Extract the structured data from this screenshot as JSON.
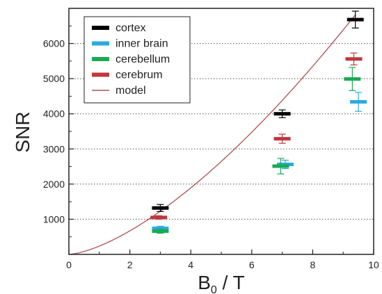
{
  "chart_data": {
    "type": "scatter",
    "xlabel_main": "B",
    "xlabel_sub": "0",
    "xlabel_rest": " / T",
    "ylabel": "SNR",
    "xlim": [
      0,
      10
    ],
    "ylim": [
      0,
      7000
    ],
    "x_ticks": [
      0,
      2,
      4,
      6,
      8,
      10
    ],
    "x_minor_ticks": [
      1,
      3,
      5,
      7,
      9
    ],
    "y_ticks": [
      1000,
      2000,
      3000,
      4000,
      5000,
      6000
    ],
    "grid": "horizontal-dotted",
    "legend_position": "top-left",
    "series": [
      {
        "name": "cortex",
        "color": "#000000",
        "points": [
          {
            "x": 3.0,
            "y": 1320,
            "err": 100
          },
          {
            "x": 7.0,
            "y": 4000,
            "err": 110
          },
          {
            "x": 9.4,
            "y": 6680,
            "err": 240
          }
        ]
      },
      {
        "name": "inner brain",
        "color": "#29abe2",
        "points": [
          {
            "x": 3.0,
            "y": 740,
            "err": 60
          },
          {
            "x": 7.1,
            "y": 2560,
            "err": 120
          },
          {
            "x": 9.5,
            "y": 4340,
            "err": 270
          }
        ]
      },
      {
        "name": "cerebellum",
        "color": "#1aab52",
        "points": [
          {
            "x": 3.0,
            "y": 660,
            "err": 60
          },
          {
            "x": 6.95,
            "y": 2510,
            "err": 220
          },
          {
            "x": 9.3,
            "y": 4990,
            "err": 330
          }
        ]
      },
      {
        "name": "cerebrum",
        "color": "#c0373c",
        "points": [
          {
            "x": 2.95,
            "y": 1050,
            "err": 50
          },
          {
            "x": 7.0,
            "y": 3290,
            "err": 130
          },
          {
            "x": 9.35,
            "y": 5560,
            "err": 170
          }
        ]
      }
    ],
    "model": {
      "name": "model",
      "color": "#b05050",
      "coef": 236.5,
      "exponent": 1.5,
      "x_range": [
        0,
        9.4
      ]
    }
  }
}
